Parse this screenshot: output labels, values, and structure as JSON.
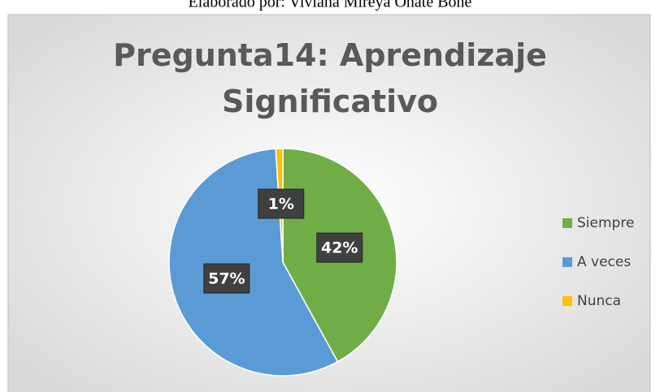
{
  "caption": "Elaborado por: Viviana Mireya Oñate Bone",
  "chart_data": {
    "type": "pie",
    "title": "Pregunta14: Aprendizaje Significativo",
    "categories": [
      "Siempre",
      "A veces",
      "Nunca"
    ],
    "values": [
      42,
      57,
      1
    ],
    "value_labels": [
      "42%",
      "57%",
      "1%"
    ],
    "colors": [
      "#70ad47",
      "#5b9bd5",
      "#ffc000"
    ],
    "legend": "right"
  }
}
